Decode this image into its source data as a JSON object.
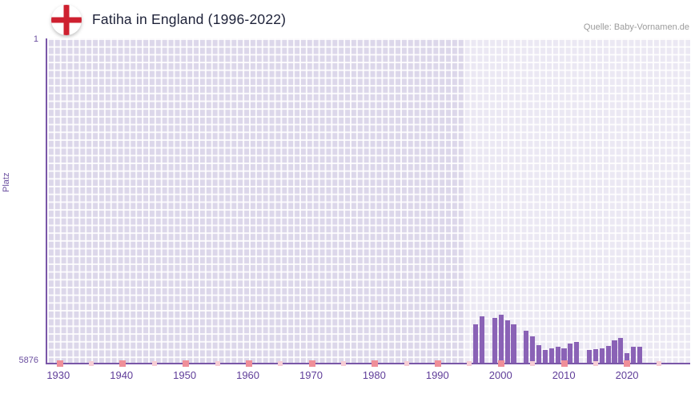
{
  "header": {
    "title": "Fatiha in England (1996-2022)",
    "source": "Quelle: Baby-Vornamen.de",
    "flag_icon": "england-flag-icon"
  },
  "chart_data": {
    "type": "bar",
    "title": "Fatiha in England (1996-2022)",
    "xlabel": "",
    "ylabel": "Platz",
    "legend": "none",
    "grid": "on",
    "y_axis": {
      "top_label": "1",
      "bottom_label": "5876",
      "min": 1,
      "max": 5876,
      "inverted": true
    },
    "x_axis": {
      "range": [
        1928,
        2030
      ],
      "tick_years": [
        1930,
        1940,
        1950,
        1960,
        1970,
        1980,
        1990,
        2000,
        2010,
        2020
      ],
      "tick_labels": [
        "1930",
        "1940",
        "1950",
        "1960",
        "1970",
        "1980",
        "1990",
        "2000",
        "2010",
        "2020"
      ],
      "minor_mark_years": [
        1935,
        1945,
        1955,
        1965,
        1975,
        1985,
        1995,
        2005,
        2015,
        2025
      ]
    },
    "highlight_band": {
      "from": 1994,
      "to": 2030
    },
    "series": [
      {
        "name": "Platz",
        "points": [
          {
            "year": 1996,
            "rank": 5180
          },
          {
            "year": 1997,
            "rank": 5040
          },
          {
            "year": 1998,
            "rank": null
          },
          {
            "year": 1999,
            "rank": 5070
          },
          {
            "year": 2000,
            "rank": 5010
          },
          {
            "year": 2001,
            "rank": 5100
          },
          {
            "year": 2002,
            "rank": 5185
          },
          {
            "year": 2003,
            "rank": null
          },
          {
            "year": 2004,
            "rank": 5300
          },
          {
            "year": 2005,
            "rank": 5400
          },
          {
            "year": 2006,
            "rank": 5560
          },
          {
            "year": 2007,
            "rank": 5645
          },
          {
            "year": 2008,
            "rank": 5615
          },
          {
            "year": 2009,
            "rank": 5590
          },
          {
            "year": 2010,
            "rank": 5615
          },
          {
            "year": 2011,
            "rank": 5530
          },
          {
            "year": 2012,
            "rank": 5500
          },
          {
            "year": 2013,
            "rank": null
          },
          {
            "year": 2014,
            "rank": 5645
          },
          {
            "year": 2015,
            "rank": 5630
          },
          {
            "year": 2016,
            "rank": 5615
          },
          {
            "year": 2017,
            "rank": 5575
          },
          {
            "year": 2018,
            "rank": 5470
          },
          {
            "year": 2019,
            "rank": 5430
          },
          {
            "year": 2020,
            "rank": 5700
          },
          {
            "year": 2021,
            "rank": 5590
          },
          {
            "year": 2022,
            "rank": 5590
          }
        ]
      }
    ],
    "colors": {
      "bar": "#8a62b6",
      "plot_background": "#dcd7ea",
      "gridline": "#ffffff",
      "highlight_band": "#eae5f4",
      "axis": "#7a57a8",
      "tick_label": "#5f3d99",
      "decade_mark": "#ef8f99",
      "minor_mark": "#f7cdd4",
      "flag_cross_red": "#ce2030",
      "title_text": "#1d2138",
      "source_text": "#9b9b9b"
    }
  }
}
